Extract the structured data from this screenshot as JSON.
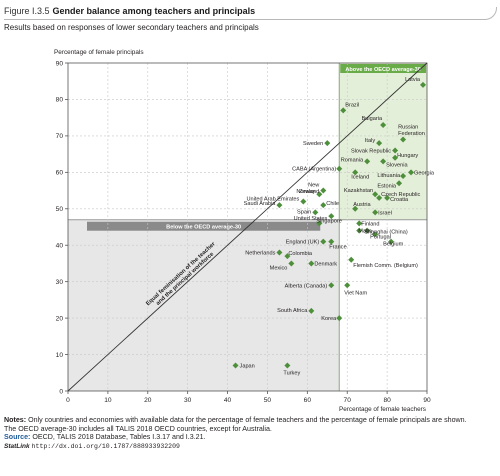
{
  "figure": {
    "number": "Figure I.3.5",
    "title": "Gender balance among teachers and principals",
    "subtitle": "Results based on responses of lower secondary teachers and principals"
  },
  "chart_data": {
    "type": "scatter",
    "xlabel": "Percentage of female teachers",
    "ylabel": "Percentage of female principals",
    "xlim": [
      0,
      90
    ],
    "ylim": [
      0,
      90
    ],
    "xticks": [
      0,
      10,
      20,
      30,
      40,
      50,
      60,
      70,
      80,
      90
    ],
    "yticks": [
      0,
      10,
      20,
      30,
      40,
      50,
      60,
      70,
      80,
      90
    ],
    "grid": true,
    "oecd_average": {
      "x": 68,
      "y": 47
    },
    "regions": {
      "above_label": "Above the OECD average-30",
      "below_label": "Below the OECD average-30"
    },
    "diagonal_label_line1": "Equal feminisation of the teacher",
    "diagonal_label_line2": "and the principal workforce",
    "colors": {
      "marker": "#4e8f3c",
      "above_fill": "#e4efd9",
      "below_fill": "#e7e7e7",
      "above_header": "#6aab49",
      "below_header": "#8a8a8a"
    },
    "points": [
      {
        "name": "Latvia",
        "x": 89,
        "y": 84
      },
      {
        "name": "Brazil",
        "x": 69,
        "y": 77
      },
      {
        "name": "Bulgaria",
        "x": 79,
        "y": 73
      },
      {
        "name": "Russian Federation",
        "x": 84,
        "y": 69
      },
      {
        "name": "Sweden",
        "x": 65,
        "y": 68
      },
      {
        "name": "Italy",
        "x": 78,
        "y": 68
      },
      {
        "name": "Slovak Republic",
        "x": 82,
        "y": 66
      },
      {
        "name": "Hungary",
        "x": 82,
        "y": 64
      },
      {
        "name": "Romania",
        "x": 75,
        "y": 63
      },
      {
        "name": "Slovenia",
        "x": 79,
        "y": 63
      },
      {
        "name": "CABA (Argentina)",
        "x": 68,
        "y": 61
      },
      {
        "name": "Iceland",
        "x": 72,
        "y": 60
      },
      {
        "name": "Georgia",
        "x": 86,
        "y": 60
      },
      {
        "name": "Lithuania",
        "x": 84,
        "y": 59
      },
      {
        "name": "Estonia",
        "x": 83,
        "y": 57
      },
      {
        "name": "New Zealand",
        "x": 64,
        "y": 55
      },
      {
        "name": "Norway",
        "x": 63,
        "y": 54
      },
      {
        "name": "Kazakhstan",
        "x": 77,
        "y": 54
      },
      {
        "name": "Czech Republic",
        "x": 78,
        "y": 53
      },
      {
        "name": "Croatia",
        "x": 80,
        "y": 53
      },
      {
        "name": "United Arab Emirates",
        "x": 59,
        "y": 52
      },
      {
        "name": "Saudi Arabia",
        "x": 53,
        "y": 51
      },
      {
        "name": "Chile",
        "x": 64,
        "y": 51
      },
      {
        "name": "Austria",
        "x": 72,
        "y": 50
      },
      {
        "name": "Spain",
        "x": 62,
        "y": 49
      },
      {
        "name": "Israel",
        "x": 77,
        "y": 49
      },
      {
        "name": "United States",
        "x": 66,
        "y": 48
      },
      {
        "name": "Singapore",
        "x": 63,
        "y": 46
      },
      {
        "name": "Finland",
        "x": 73,
        "y": 46
      },
      {
        "name": "Malta",
        "x": 73,
        "y": 44
      },
      {
        "name": "Shanghai (China)",
        "x": 75,
        "y": 44
      },
      {
        "name": "Portugal",
        "x": 77,
        "y": 43
      },
      {
        "name": "England (UK)",
        "x": 64,
        "y": 41
      },
      {
        "name": "France",
        "x": 66,
        "y": 41
      },
      {
        "name": "Belgium",
        "x": 81,
        "y": 41
      },
      {
        "name": "Netherlands",
        "x": 53,
        "y": 38
      },
      {
        "name": "Colombia",
        "x": 55,
        "y": 37
      },
      {
        "name": "Mexico",
        "x": 56,
        "y": 35
      },
      {
        "name": "Denmark",
        "x": 61,
        "y": 35
      },
      {
        "name": "Flemish Comm. (Belgium)",
        "x": 71,
        "y": 36
      },
      {
        "name": "Alberta (Canada)",
        "x": 66,
        "y": 29
      },
      {
        "name": "Viet Nam",
        "x": 70,
        "y": 29
      },
      {
        "name": "South Africa",
        "x": 61,
        "y": 22
      },
      {
        "name": "Korea",
        "x": 68,
        "y": 20
      },
      {
        "name": "Japan",
        "x": 42,
        "y": 7
      },
      {
        "name": "Turkey",
        "x": 55,
        "y": 7
      }
    ]
  },
  "notes": {
    "notes_label": "Notes:",
    "notes_text": "Only countries and economies with available data for the percentage of female teachers and the percentage of female principals are shown.",
    "note2": "The OECD average-30 includes all TALIS 2018 OECD countries, except for Australia.",
    "source_label": "Source:",
    "source_text": "OECD, TALIS 2018 Database, Tables I.3.17 and I.3.21.",
    "statlink_label": "StatLink",
    "statlink_url": "http://dx.doi.org/10.1787/888933932209"
  }
}
